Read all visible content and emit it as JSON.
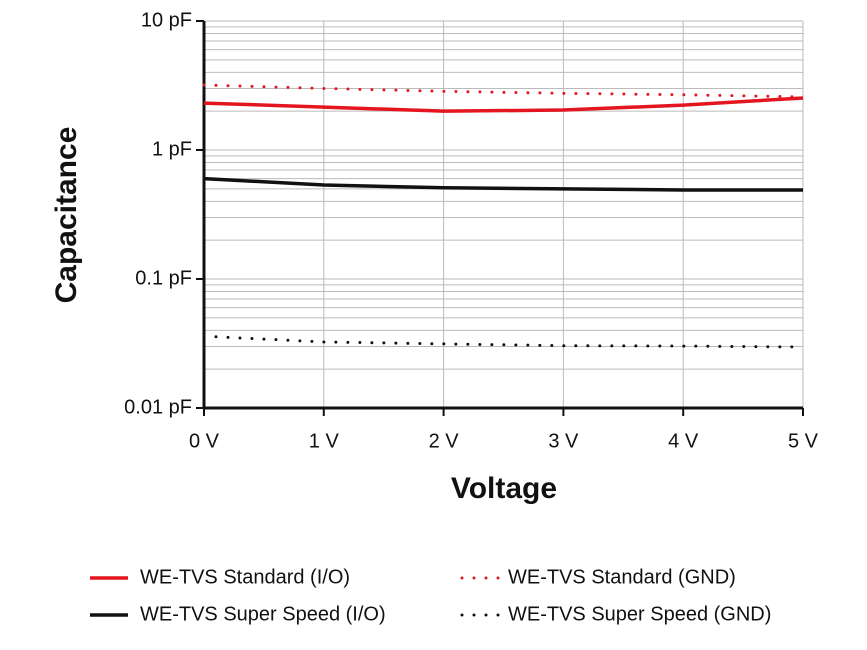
{
  "chart_data": {
    "type": "line",
    "xlabel": "Voltage",
    "ylabel": "Capacitance",
    "x": [
      0,
      1,
      2,
      3,
      4,
      5
    ],
    "xlim": [
      0,
      5
    ],
    "xticks": [
      {
        "value": 0,
        "label": "0 V"
      },
      {
        "value": 1,
        "label": "1 V"
      },
      {
        "value": 2,
        "label": "2 V"
      },
      {
        "value": 3,
        "label": "3 V"
      },
      {
        "value": 4,
        "label": "4 V"
      },
      {
        "value": 5,
        "label": "5 V"
      }
    ],
    "ylim": [
      0.01,
      10
    ],
    "yticks": [
      {
        "value": 0.01,
        "label": "0.01 pF"
      },
      {
        "value": 0.1,
        "label": "0.1 pF"
      },
      {
        "value": 1,
        "label": "1 pF"
      },
      {
        "value": 10,
        "label": "10 pF"
      }
    ],
    "log_y": true,
    "grid": true,
    "series": [
      {
        "name": "WE-TVS Standard (I/O)",
        "color": "#e3161f",
        "style": "solid",
        "values": [
          2.31,
          2.15,
          2.0,
          2.04,
          2.23,
          2.53
        ]
      },
      {
        "name": "WE-TVS Standard (GND)",
        "color": "#e3161f",
        "style": "dotted",
        "values": [
          3.19,
          3.0,
          2.85,
          2.75,
          2.68,
          2.58
        ]
      },
      {
        "name": "WE-TVS Super Speed (I/O)",
        "color": "#111111",
        "style": "solid",
        "values": [
          0.6,
          0.535,
          0.51,
          0.5,
          0.49,
          0.49
        ]
      },
      {
        "name": "WE-TVS Super Speed (GND)",
        "color": "#111111",
        "style": "dotted",
        "values": [
          0.036,
          0.0325,
          0.0314,
          0.0304,
          0.0302,
          0.0297
        ]
      }
    ]
  }
}
